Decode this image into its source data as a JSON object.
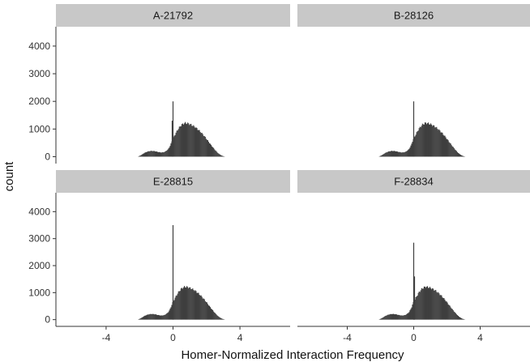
{
  "chart_data": {
    "type": "histogram",
    "facet_layout": "2x2",
    "xlabel": "Homer-Normalized Interaction Frequency",
    "ylabel": "count",
    "xlim": [
      -7,
      7
    ],
    "ylim": [
      -250,
      4700
    ],
    "x_ticks": [
      -4,
      0,
      4
    ],
    "y_ticks": [
      0,
      1000,
      2000,
      3000,
      4000
    ],
    "grid": false,
    "bar_color": "#3f3f3f",
    "bin_width": 0.05,
    "panels": [
      {
        "title": "A-21792",
        "shape": [
          [
            -2.1,
            0
          ],
          [
            -1.9,
            60
          ],
          [
            -1.7,
            140
          ],
          [
            -1.5,
            190
          ],
          [
            -1.3,
            210
          ],
          [
            -1.1,
            200
          ],
          [
            -0.9,
            170
          ],
          [
            -0.7,
            150
          ],
          [
            -0.5,
            170
          ],
          [
            -0.3,
            260
          ],
          [
            -0.15,
            420
          ],
          [
            -0.05,
            600
          ],
          [
            0.1,
            780
          ],
          [
            0.3,
            1000
          ],
          [
            0.5,
            1150
          ],
          [
            0.7,
            1220
          ],
          [
            0.9,
            1200
          ],
          [
            1.1,
            1150
          ],
          [
            1.3,
            1080
          ],
          [
            1.5,
            980
          ],
          [
            1.7,
            860
          ],
          [
            1.9,
            720
          ],
          [
            2.1,
            560
          ],
          [
            2.3,
            400
          ],
          [
            2.5,
            250
          ],
          [
            2.7,
            120
          ],
          [
            2.9,
            40
          ],
          [
            3.1,
            0
          ]
        ],
        "spikes": [
          {
            "x": 0.0,
            "value": 2000
          },
          {
            "x": -0.05,
            "value": 1300
          }
        ]
      },
      {
        "title": "B-28126",
        "shape": [
          [
            -2.1,
            0
          ],
          [
            -1.9,
            60
          ],
          [
            -1.7,
            140
          ],
          [
            -1.5,
            190
          ],
          [
            -1.3,
            210
          ],
          [
            -1.1,
            200
          ],
          [
            -0.9,
            170
          ],
          [
            -0.7,
            150
          ],
          [
            -0.5,
            170
          ],
          [
            -0.3,
            260
          ],
          [
            -0.15,
            420
          ],
          [
            -0.05,
            600
          ],
          [
            0.1,
            780
          ],
          [
            0.3,
            1000
          ],
          [
            0.5,
            1150
          ],
          [
            0.7,
            1220
          ],
          [
            0.9,
            1200
          ],
          [
            1.1,
            1150
          ],
          [
            1.3,
            1080
          ],
          [
            1.5,
            980
          ],
          [
            1.7,
            860
          ],
          [
            1.9,
            720
          ],
          [
            2.1,
            560
          ],
          [
            2.3,
            400
          ],
          [
            2.5,
            250
          ],
          [
            2.7,
            120
          ],
          [
            2.9,
            40
          ],
          [
            3.1,
            0
          ]
        ],
        "spikes": [
          {
            "x": 0.0,
            "value": 2000
          }
        ]
      },
      {
        "title": "E-28815",
        "shape": [
          [
            -2.1,
            0
          ],
          [
            -1.9,
            60
          ],
          [
            -1.7,
            140
          ],
          [
            -1.5,
            190
          ],
          [
            -1.3,
            210
          ],
          [
            -1.1,
            200
          ],
          [
            -0.9,
            170
          ],
          [
            -0.7,
            150
          ],
          [
            -0.5,
            170
          ],
          [
            -0.3,
            260
          ],
          [
            -0.15,
            420
          ],
          [
            -0.05,
            600
          ],
          [
            0.1,
            780
          ],
          [
            0.3,
            1000
          ],
          [
            0.5,
            1150
          ],
          [
            0.7,
            1220
          ],
          [
            0.9,
            1200
          ],
          [
            1.1,
            1150
          ],
          [
            1.3,
            1080
          ],
          [
            1.5,
            980
          ],
          [
            1.7,
            860
          ],
          [
            1.9,
            720
          ],
          [
            2.1,
            560
          ],
          [
            2.3,
            400
          ],
          [
            2.5,
            250
          ],
          [
            2.7,
            120
          ],
          [
            2.9,
            40
          ],
          [
            3.1,
            0
          ]
        ],
        "spikes": [
          {
            "x": 0.0,
            "value": 3500
          }
        ]
      },
      {
        "title": "F-28834",
        "shape": [
          [
            -2.1,
            0
          ],
          [
            -1.9,
            60
          ],
          [
            -1.7,
            140
          ],
          [
            -1.5,
            190
          ],
          [
            -1.3,
            210
          ],
          [
            -1.1,
            200
          ],
          [
            -0.9,
            170
          ],
          [
            -0.7,
            150
          ],
          [
            -0.5,
            170
          ],
          [
            -0.3,
            260
          ],
          [
            -0.15,
            420
          ],
          [
            -0.05,
            600
          ],
          [
            0.1,
            780
          ],
          [
            0.3,
            1000
          ],
          [
            0.5,
            1150
          ],
          [
            0.7,
            1220
          ],
          [
            0.9,
            1200
          ],
          [
            1.1,
            1150
          ],
          [
            1.3,
            1080
          ],
          [
            1.5,
            980
          ],
          [
            1.7,
            860
          ],
          [
            1.9,
            720
          ],
          [
            2.1,
            560
          ],
          [
            2.3,
            400
          ],
          [
            2.5,
            250
          ],
          [
            2.7,
            120
          ],
          [
            2.9,
            40
          ],
          [
            3.1,
            0
          ]
        ],
        "spikes": [
          {
            "x": 0.0,
            "value": 2850
          },
          {
            "x": 0.05,
            "value": 1600
          }
        ]
      }
    ]
  }
}
